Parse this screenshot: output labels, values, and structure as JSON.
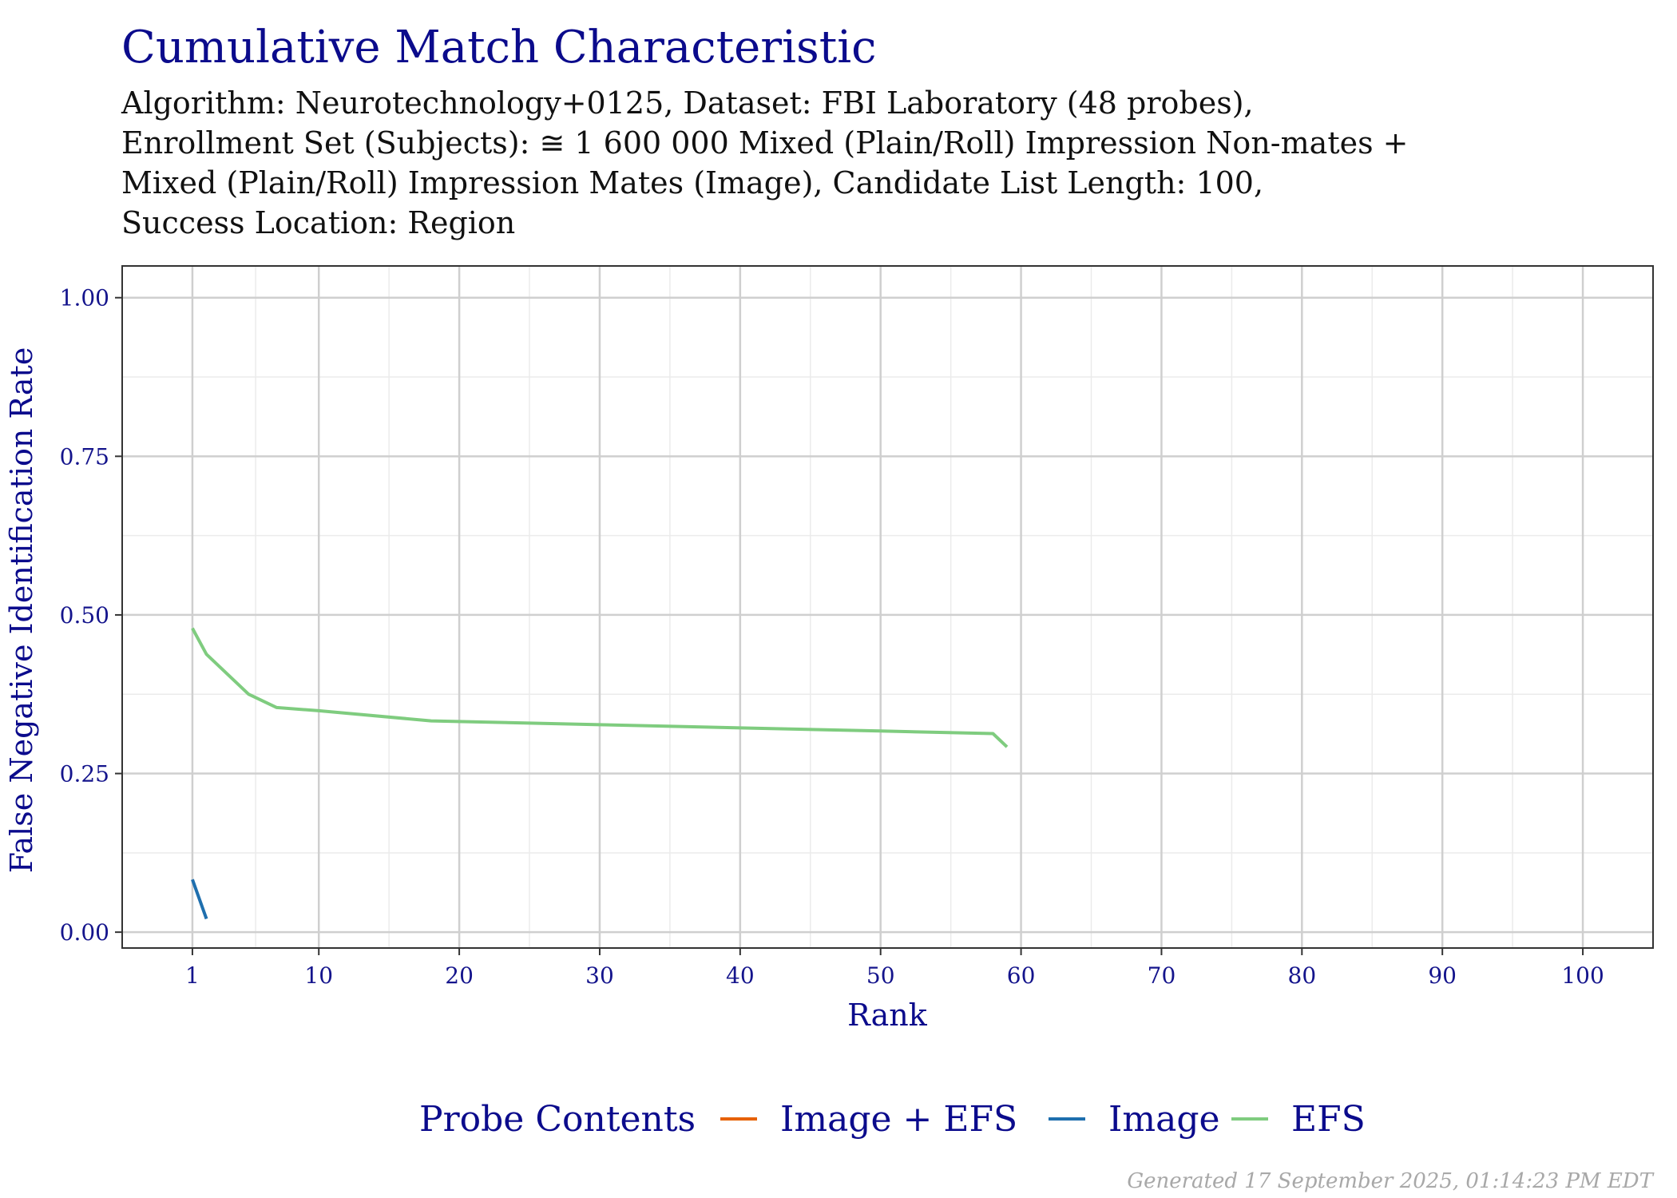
{
  "chart_data": {
    "type": "line",
    "title": "Cumulative Match Characteristic",
    "subtitle_lines": [
      "Algorithm: Neurotechnology+0125, Dataset: FBI Laboratory (48 probes),",
      "Enrollment Set (Subjects): ≅ 1 600 000 Mixed (Plain/Roll) Impression Non-mates +",
      "Mixed (Plain/Roll) Impression Mates (Image), Candidate List Length: 100,",
      "Success Location: Region"
    ],
    "xlabel": "Rank",
    "ylabel": "False Negative Identification Rate",
    "xlim": [
      -4,
      105
    ],
    "ylim": [
      -0.025,
      1.05
    ],
    "x_ticks": [
      1,
      10,
      20,
      30,
      40,
      50,
      60,
      70,
      80,
      90,
      100
    ],
    "y_ticks": [
      0.0,
      0.25,
      0.5,
      0.75,
      1.0
    ],
    "y_tick_labels": [
      "0.00",
      "0.25",
      "0.50",
      "0.75",
      "1.00"
    ],
    "grid": true,
    "legend": {
      "position": "bottom",
      "title": "Probe Contents"
    },
    "series": [
      {
        "name": "Image + EFS",
        "color": "#E66101",
        "x": [],
        "y": []
      },
      {
        "name": "Image",
        "color": "#1F6FAE",
        "x": [
          1,
          2
        ],
        "y": [
          0.083,
          0.021
        ]
      },
      {
        "name": "EFS",
        "color": "#7FCC7F",
        "x": [
          1,
          2,
          5,
          7,
          10,
          18,
          30,
          40,
          50,
          58,
          59
        ],
        "y": [
          0.479,
          0.438,
          0.375,
          0.354,
          0.349,
          0.333,
          0.327,
          0.322,
          0.317,
          0.313,
          0.292
        ]
      }
    ]
  },
  "footer": "Generated 17 September 2025, 01:14:23 PM EDT"
}
